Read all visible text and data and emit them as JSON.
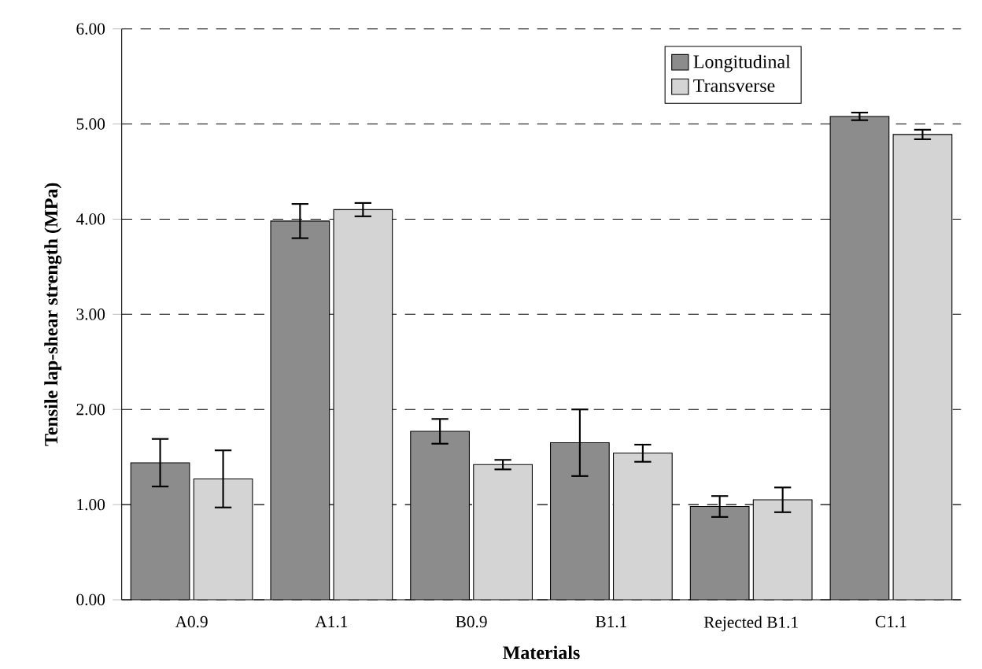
{
  "chart_data": {
    "type": "bar",
    "xlabel": "Materials",
    "ylabel": "Tensile lap-shear strength (MPa)",
    "categories": [
      "A0.9",
      "A1.1",
      "B0.9",
      "B1.1",
      "Rejected B1.1",
      "C1.1"
    ],
    "series": [
      {
        "name": "Longitudinal",
        "color": "#8c8c8c",
        "values": [
          1.44,
          3.98,
          1.77,
          1.65,
          0.98,
          5.08
        ],
        "errors": [
          0.25,
          0.18,
          0.13,
          0.35,
          0.11,
          0.04
        ]
      },
      {
        "name": "Transverse",
        "color": "#d4d4d4",
        "values": [
          1.27,
          4.1,
          1.42,
          1.54,
          1.05,
          4.89
        ],
        "errors": [
          0.3,
          0.07,
          0.05,
          0.09,
          0.13,
          0.05
        ]
      }
    ],
    "ylim": [
      0,
      6
    ],
    "yticks": [
      {
        "value": 0,
        "label": "0.00"
      },
      {
        "value": 1,
        "label": "1.00"
      },
      {
        "value": 2,
        "label": "2.00"
      },
      {
        "value": 3,
        "label": "3.00"
      },
      {
        "value": 4,
        "label": "4.00"
      },
      {
        "value": 5,
        "label": "5.00"
      },
      {
        "value": 6,
        "label": "6.00"
      }
    ],
    "grid": "y",
    "legend": "top right"
  }
}
